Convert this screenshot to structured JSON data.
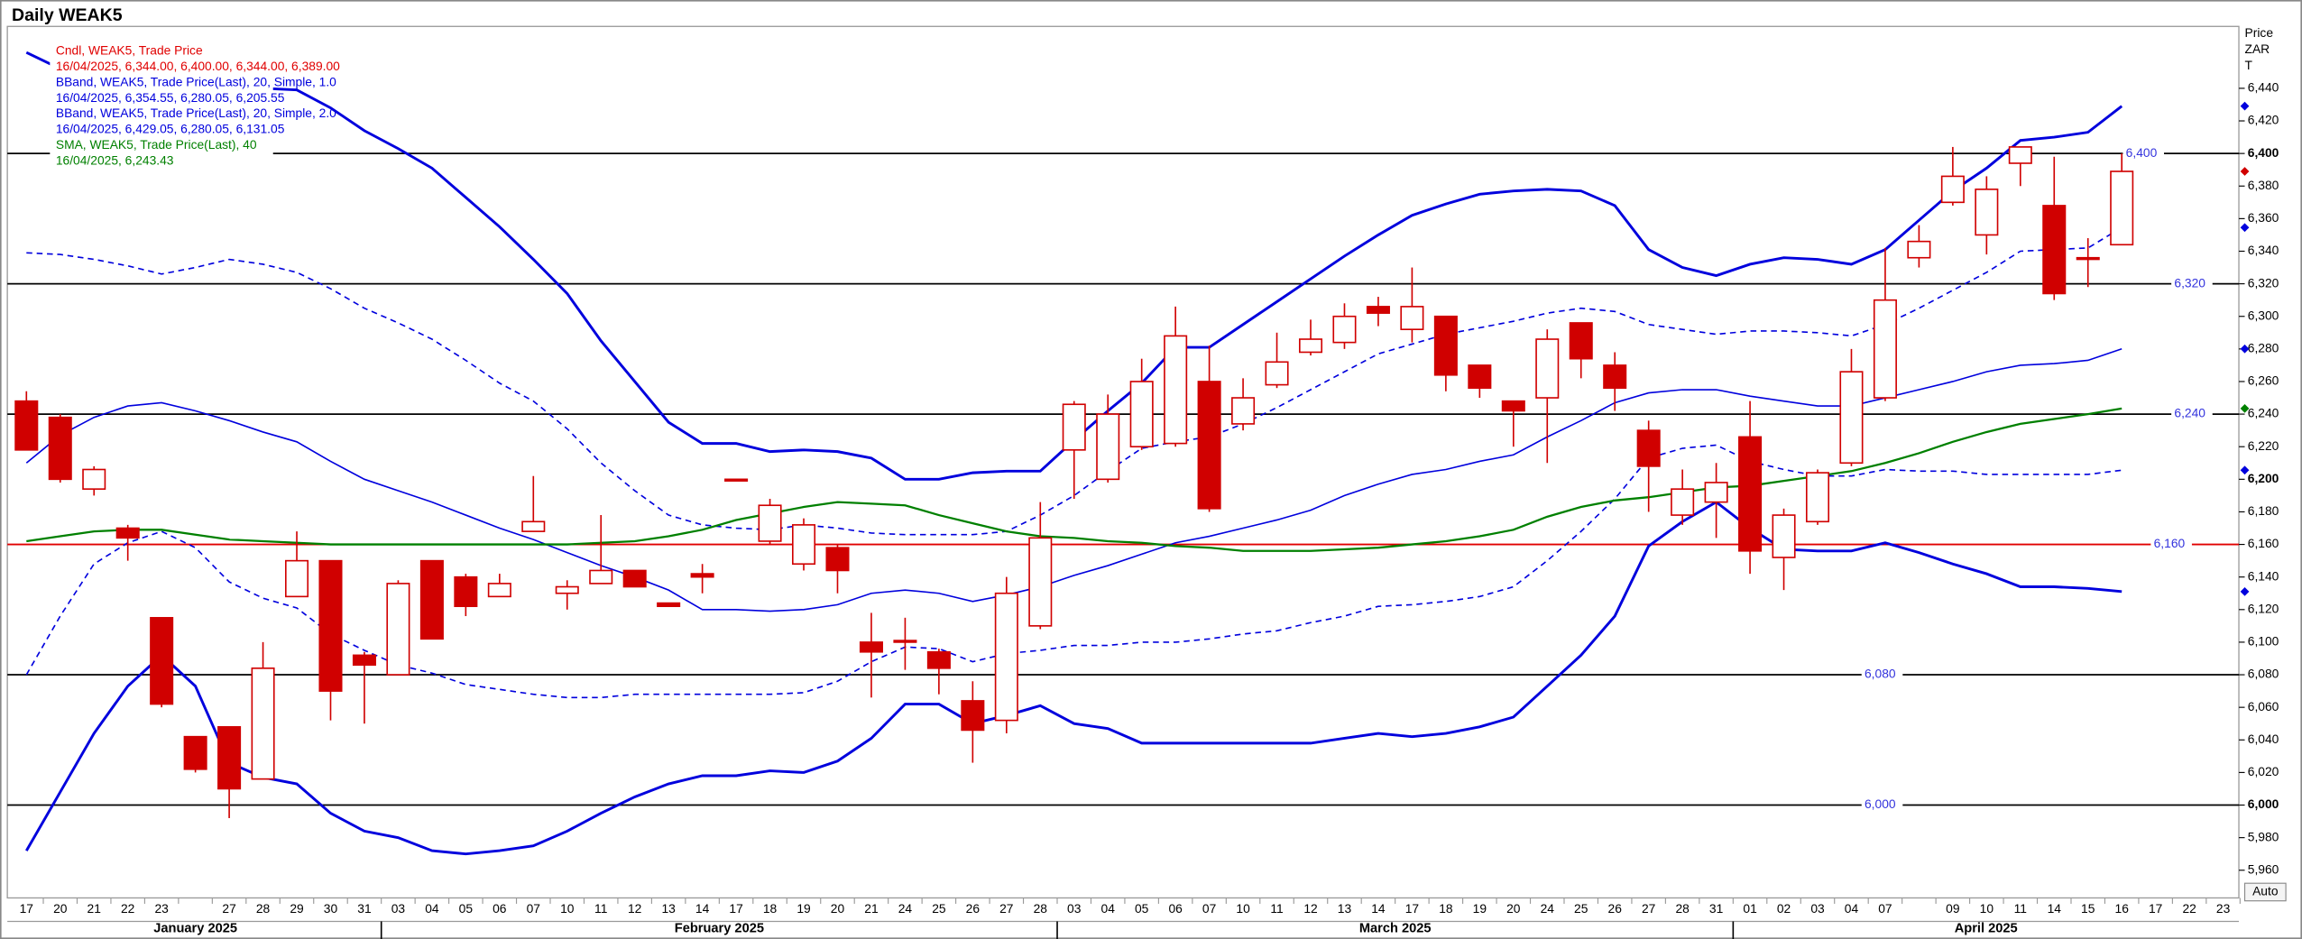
{
  "chart_data": {
    "type": "candlestick",
    "title": "Daily WEAK5",
    "axis_header": [
      "Price",
      "ZAR",
      "T"
    ],
    "auto_button": "Auto",
    "legend": [
      {
        "text": "Cndl, WEAK5, Trade Price",
        "color": "#e00000"
      },
      {
        "text": "16/04/2025, 6,344.00, 6,400.00, 6,344.00, 6,389.00",
        "color": "#e00000"
      },
      {
        "text": "BBand, WEAK5, Trade Price(Last),  20, Simple, 1.0",
        "color": "#0000dd"
      },
      {
        "text": "16/04/2025, 6,354.55, 6,280.05, 6,205.55",
        "color": "#0000dd"
      },
      {
        "text": "BBand, WEAK5, Trade Price(Last),  20, Simple, 2.0",
        "color": "#0000dd"
      },
      {
        "text": "16/04/2025, 6,429.05, 6,280.05, 6,131.05",
        "color": "#0000dd"
      },
      {
        "text": "SMA, WEAK5, Trade Price(Last),  40",
        "color": "#008000"
      },
      {
        "text": "16/04/2025, 6,243.43",
        "color": "#008000"
      }
    ],
    "categories": [
      "17",
      "20",
      "21",
      "22",
      "23",
      null,
      "27",
      "28",
      "29",
      "30",
      "31",
      "03",
      "04",
      "05",
      "06",
      "07",
      "10",
      "11",
      "12",
      "13",
      "14",
      "17",
      "18",
      "19",
      "20",
      "21",
      "24",
      "25",
      "26",
      "27",
      "28",
      "03",
      "04",
      "05",
      "06",
      "07",
      "10",
      "11",
      "12",
      "13",
      "14",
      "17",
      "18",
      "19",
      "20",
      "24",
      "25",
      "26",
      "27",
      "28",
      "31",
      "01",
      "02",
      "03",
      "04",
      "07",
      null,
      "09",
      "10",
      "11",
      "14",
      "15",
      "16",
      "17",
      "22",
      "23"
    ],
    "month_groups": [
      {
        "label": "January 2025",
        "count": 11
      },
      {
        "label": "February 2025",
        "count": 20
      },
      {
        "label": "March 2025",
        "count": 20
      },
      {
        "label": "April 2025",
        "count": 15
      }
    ],
    "open": [
      6248,
      6238,
      6194,
      6170,
      6115,
      6042,
      6048,
      6016,
      6128,
      6150,
      6092,
      6080,
      6150,
      6140,
      6128,
      6168,
      6130,
      6136,
      6144,
      6124,
      6142,
      6200,
      6162,
      6148,
      6158,
      6100,
      6101,
      6094,
      6064,
      6052,
      6110,
      6218,
      6200,
      6220,
      6222,
      6260,
      6234,
      6258,
      6278,
      6284,
      6306,
      6292,
      6300,
      6270,
      6248,
      6250,
      6296,
      6270,
      6230,
      6178,
      6186,
      6226,
      6152,
      6174,
      6210,
      6250,
      6336,
      6370,
      6350,
      6394,
      6368,
      6336,
      6344,
      null,
      null,
      null
    ],
    "high": [
      6254,
      6240,
      6208,
      6172,
      6115,
      6042,
      6048,
      6100,
      6168,
      6150,
      6094,
      6138,
      6150,
      6142,
      6142,
      6202,
      6138,
      6178,
      6144,
      6124,
      6148,
      6200,
      6188,
      6176,
      6160,
      6118,
      6115,
      6096,
      6076,
      6140,
      6186,
      6248,
      6252,
      6274,
      6306,
      6282,
      6262,
      6290,
      6298,
      6308,
      6312,
      6330,
      6300,
      6270,
      6248,
      6292,
      6296,
      6278,
      6236,
      6206,
      6210,
      6248,
      6182,
      6206,
      6280,
      6342,
      6356,
      6404,
      6386,
      6404,
      6398,
      6348,
      6400,
      null,
      null,
      null
    ],
    "low": [
      6218,
      6198,
      6190,
      6150,
      6060,
      6020,
      5992,
      6016,
      6128,
      6052,
      6050,
      6080,
      6102,
      6116,
      6128,
      6168,
      6120,
      6136,
      6134,
      6122,
      6130,
      6200,
      6160,
      6144,
      6130,
      6066,
      6083,
      6068,
      6026,
      6044,
      6108,
      6188,
      6198,
      6218,
      6220,
      6180,
      6230,
      6256,
      6276,
      6280,
      6294,
      6284,
      6254,
      6250,
      6220,
      6210,
      6262,
      6242,
      6180,
      6172,
      6164,
      6142,
      6132,
      6172,
      6208,
      6248,
      6330,
      6368,
      6338,
      6380,
      6310,
      6318,
      6344,
      null,
      null,
      null
    ],
    "close": [
      6218,
      6200,
      6206,
      6164,
      6062,
      6022,
      6010,
      6084,
      6150,
      6070,
      6086,
      6136,
      6102,
      6122,
      6136,
      6174,
      6134,
      6144,
      6134,
      6122,
      6140,
      6199,
      6184,
      6172,
      6144,
      6094,
      6100,
      6084,
      6046,
      6130,
      6164,
      6246,
      6240,
      6260,
      6288,
      6182,
      6250,
      6272,
      6286,
      6300,
      6302,
      6306,
      6264,
      6256,
      6242,
      6286,
      6274,
      6256,
      6208,
      6194,
      6198,
      6156,
      6178,
      6204,
      6266,
      6310,
      6346,
      6386,
      6378,
      6404,
      6314,
      6335,
      6389,
      null,
      null,
      null
    ],
    "candle_color": "#d00000",
    "overlays": [
      {
        "color": "#0000dd",
        "dashed": true,
        "width": 1,
        "values": [
          6339,
          6338,
          6335,
          6331,
          6326,
          6330,
          6335,
          6332,
          6327,
          6317,
          6305,
          6296,
          6286,
          6273,
          6259,
          6248,
          6231,
          6210,
          6193,
          6178,
          6172,
          6170,
          6169,
          6172,
          6170,
          6167,
          6166,
          6166,
          6166,
          6168,
          6178,
          6190,
          6205,
          6219,
          6223,
          6226,
          6234,
          6244,
          6255,
          6266,
          6277,
          6283,
          6289,
          6293,
          6297,
          6302,
          6305,
          6303,
          6295,
          6292,
          6289,
          6291,
          6291,
          6290,
          6288,
          6295,
          6305,
          6316,
          6327,
          6340,
          6341,
          6342,
          6354.55,
          null,
          null,
          null
        ]
      },
      {
        "color": "#0000dd",
        "dashed": true,
        "width": 1,
        "values": [
          6080,
          6116,
          6148,
          6161,
          6168,
          6158,
          6137,
          6127,
          6121,
          6105,
          6095,
          6086,
          6081,
          6074,
          6071,
          6068,
          6066,
          6066,
          6068,
          6068,
          6068,
          6068,
          6068,
          6069,
          6076,
          6088,
          6097,
          6096,
          6088,
          6093,
          6095,
          6098,
          6098,
          6100,
          6100,
          6102,
          6105,
          6107,
          6112,
          6116,
          6122,
          6123,
          6125,
          6128,
          6134,
          6150,
          6168,
          6188,
          6213,
          6219,
          6221,
          6211,
          6206,
          6202,
          6202,
          6206,
          6205,
          6205,
          6203,
          6203,
          6203,
          6203,
          6205.55,
          null,
          null,
          null
        ]
      },
      {
        "color": "#0000dd",
        "dashed": false,
        "width": 1,
        "values": [
          6210,
          6227,
          6238,
          6245,
          6247,
          6242,
          6236,
          6229,
          6223,
          6211,
          6200,
          6193,
          6186,
          6178,
          6170,
          6163,
          6155,
          6147,
          6140,
          6132,
          6120,
          6120,
          6119,
          6120,
          6123,
          6130,
          6132,
          6130,
          6125,
          6129,
          6134,
          6141,
          6147,
          6154,
          6161,
          6165,
          6170,
          6175,
          6181,
          6190,
          6197,
          6203,
          6206,
          6211,
          6215,
          6226,
          6236,
          6247,
          6253,
          6255,
          6255,
          6251,
          6248,
          6245,
          6245,
          6250,
          6255,
          6260,
          6266,
          6270,
          6271,
          6273,
          6280.05,
          null,
          null,
          null
        ]
      },
      {
        "color": "#0000dd",
        "dashed": false,
        "width": 1.8,
        "values": [
          6462,
          6452,
          6447,
          6444,
          6442,
          6441,
          6440,
          6440,
          6439,
          6428,
          6414,
          6403,
          6391,
          6373,
          6355,
          6335,
          6314,
          6285,
          6260,
          6235,
          6222,
          6222,
          6217,
          6218,
          6217,
          6213,
          6200,
          6200,
          6204,
          6205,
          6205,
          6224,
          6242,
          6259,
          6281,
          6281,
          6295,
          6309,
          6323,
          6337,
          6350,
          6362,
          6369,
          6375,
          6377,
          6378,
          6377,
          6368,
          6341,
          6330,
          6325,
          6332,
          6336,
          6335,
          6332,
          6341,
          6359,
          6377,
          6391,
          6408,
          6410,
          6413,
          6429.05,
          null,
          null,
          null
        ]
      },
      {
        "color": "#0000dd",
        "dashed": false,
        "width": 1.8,
        "values": [
          5972,
          6008,
          6044,
          6073,
          6092,
          6073,
          6026,
          6017,
          6013,
          5995,
          5984,
          5980,
          5972,
          5970,
          5972,
          5975,
          5984,
          5995,
          6005,
          6013,
          6018,
          6018,
          6021,
          6020,
          6027,
          6041,
          6062,
          6062,
          6050,
          6055,
          6061,
          6050,
          6047,
          6038,
          6038,
          6038,
          6038,
          6038,
          6038,
          6041,
          6044,
          6042,
          6044,
          6048,
          6054,
          6073,
          6092,
          6116,
          6159,
          6174,
          6186,
          6170,
          6157,
          6156,
          6156,
          6161,
          6155,
          6148,
          6142,
          6134,
          6134,
          6133,
          6131.05,
          null,
          null,
          null
        ]
      },
      {
        "color": "#008000",
        "dashed": false,
        "width": 1.4,
        "values": [
          6162,
          6165,
          6168,
          6169,
          6169,
          6166,
          6163,
          6162,
          6161,
          6160,
          6160,
          6160,
          6160,
          6160,
          6160,
          6160,
          6160,
          6161,
          6162,
          6165,
          6169,
          6175,
          6179,
          6183,
          6186,
          6185,
          6184,
          6178,
          6173,
          6168,
          6165,
          6164,
          6162,
          6161,
          6159,
          6158,
          6156,
          6156,
          6156,
          6157,
          6158,
          6160,
          6162,
          6165,
          6169,
          6177,
          6183,
          6187,
          6189,
          6192,
          6195,
          6196,
          6199,
          6202,
          6205,
          6210,
          6216,
          6223,
          6229,
          6234,
          6237,
          6240,
          6243.43,
          null,
          null,
          null
        ]
      }
    ],
    "hlines": [
      {
        "value": 6400,
        "label": "6,400",
        "color": "#000000"
      },
      {
        "value": 6320,
        "label": "6,320",
        "color": "#000000"
      },
      {
        "value": 6240,
        "label": "6,240",
        "color": "#000000"
      },
      {
        "value": 6160,
        "label": "6,160",
        "color": "#e00000"
      },
      {
        "value": 6080,
        "label": "6,080",
        "color": "#000000"
      },
      {
        "value": 6000,
        "label": "6,000",
        "color": "#000000"
      }
    ],
    "ylim": [
      5943,
      6478
    ],
    "yticks": [
      {
        "value": 5960,
        "label": "5,960"
      },
      {
        "value": 5980,
        "label": "5,980"
      },
      {
        "value": 6000,
        "label": "6,000",
        "bold": true
      },
      {
        "value": 6020,
        "label": "6,020"
      },
      {
        "value": 6040,
        "label": "6,040"
      },
      {
        "value": 6060,
        "label": "6,060"
      },
      {
        "value": 6080,
        "label": "6,080"
      },
      {
        "value": 6100,
        "label": "6,100"
      },
      {
        "value": 6120,
        "label": "6,120"
      },
      {
        "value": 6140,
        "label": "6,140"
      },
      {
        "value": 6160,
        "label": "6,160"
      },
      {
        "value": 6180,
        "label": "6,180"
      },
      {
        "value": 6200,
        "label": "6,200",
        "bold": true
      },
      {
        "value": 6220,
        "label": "6,220"
      },
      {
        "value": 6240,
        "label": "6,240"
      },
      {
        "value": 6260,
        "label": "6,260"
      },
      {
        "value": 6280,
        "label": "6,280"
      },
      {
        "value": 6300,
        "label": "6,300"
      },
      {
        "value": 6320,
        "label": "6,320"
      },
      {
        "value": 6340,
        "label": "6,340"
      },
      {
        "value": 6360,
        "label": "6,360"
      },
      {
        "value": 6380,
        "label": "6,380"
      },
      {
        "value": 6400,
        "label": "6,400",
        "bold": true
      },
      {
        "value": 6420,
        "label": "6,420"
      },
      {
        "value": 6440,
        "label": "6,440"
      }
    ]
  }
}
